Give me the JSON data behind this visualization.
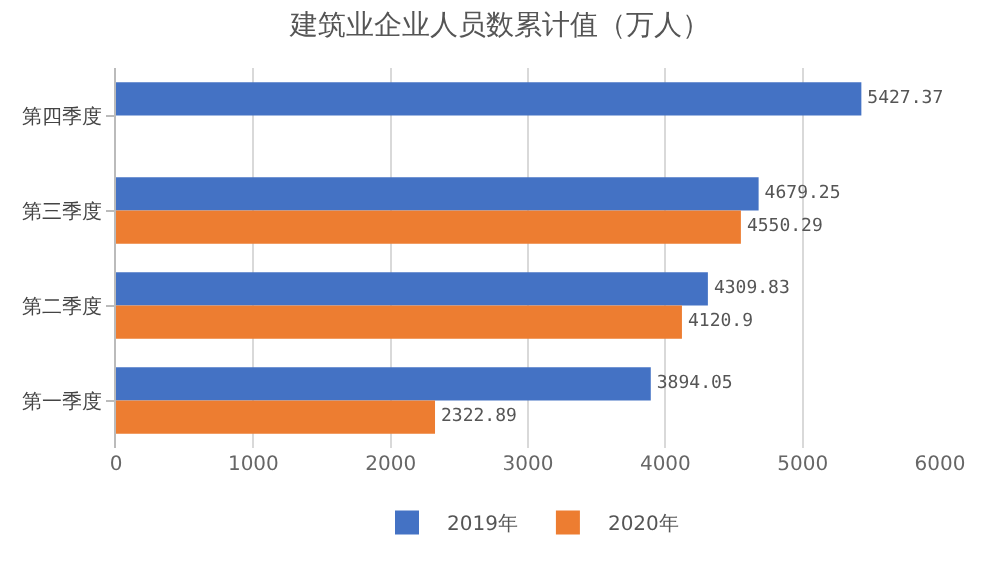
{
  "chart_data": {
    "type": "bar",
    "orientation": "horizontal",
    "title": "建筑业企业人员数累计值（万人）",
    "categories": [
      "第四季度",
      "第三季度",
      "第二季度",
      "第一季度"
    ],
    "series": [
      {
        "name": "2019年",
        "color": "#4472c4",
        "values": [
          5427.37,
          4679.25,
          4309.83,
          3894.05
        ]
      },
      {
        "name": "2020年",
        "color": "#ed7d31",
        "values": [
          null,
          4550.29,
          4120.9,
          2322.89
        ]
      }
    ],
    "xlim": [
      0,
      6000
    ],
    "xticks": [
      0,
      1000,
      2000,
      3000,
      4000,
      5000,
      6000
    ],
    "grid": "x",
    "legend": "bottom",
    "data_labels": true
  }
}
